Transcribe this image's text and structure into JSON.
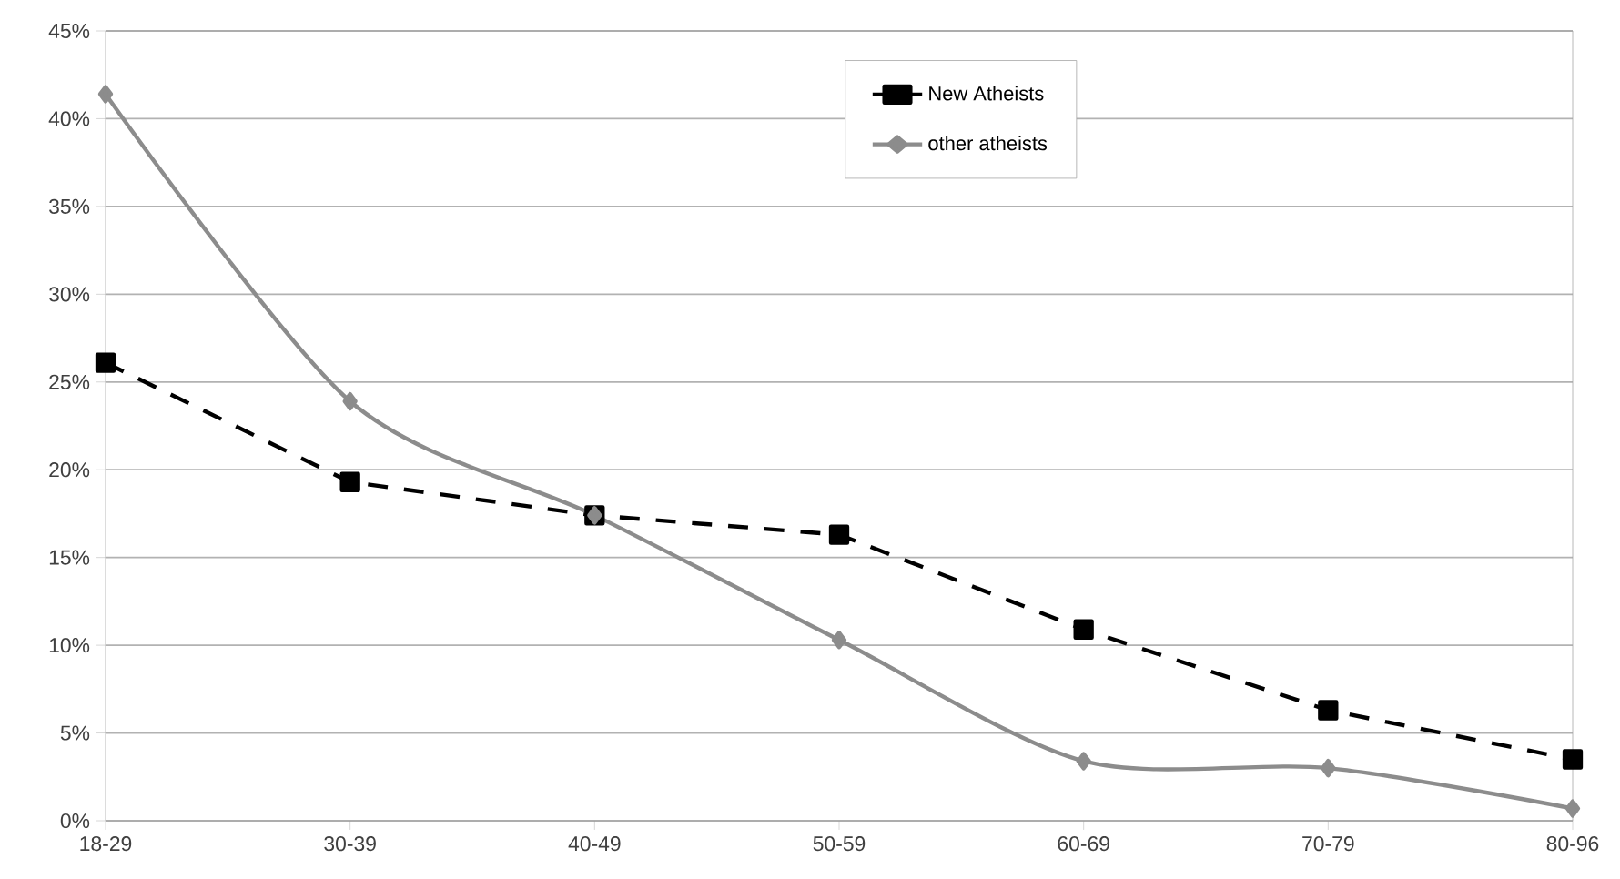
{
  "chart_data": {
    "type": "line",
    "categories": [
      "18-29",
      "30-39",
      "40-49",
      "50-59",
      "60-69",
      "70-79",
      "80-96"
    ],
    "series": [
      {
        "name": "New Atheists",
        "color": "#000000",
        "values": [
          26.1,
          19.3,
          17.4,
          16.3,
          10.9,
          6.3,
          3.5
        ],
        "marker": "square",
        "line_style": "dashed"
      },
      {
        "name": "other atheists",
        "color": "#8c8c8c",
        "values": [
          41.4,
          23.9,
          17.4,
          10.3,
          3.4,
          3.0,
          0.7
        ],
        "marker": "diamond",
        "line_style": "solid"
      }
    ],
    "ylim": [
      0,
      45
    ],
    "yticks": [
      {
        "value": 0,
        "label": "0%"
      },
      {
        "value": 5,
        "label": "5%"
      },
      {
        "value": 10,
        "label": "10%"
      },
      {
        "value": 15,
        "label": "15%"
      },
      {
        "value": 20,
        "label": "20%"
      },
      {
        "value": 25,
        "label": "25%"
      },
      {
        "value": 30,
        "label": "30%"
      },
      {
        "value": 35,
        "label": "35%"
      },
      {
        "value": 40,
        "label": "40%"
      },
      {
        "value": 45,
        "label": "45%"
      }
    ],
    "grid": "y",
    "legend": "top"
  }
}
